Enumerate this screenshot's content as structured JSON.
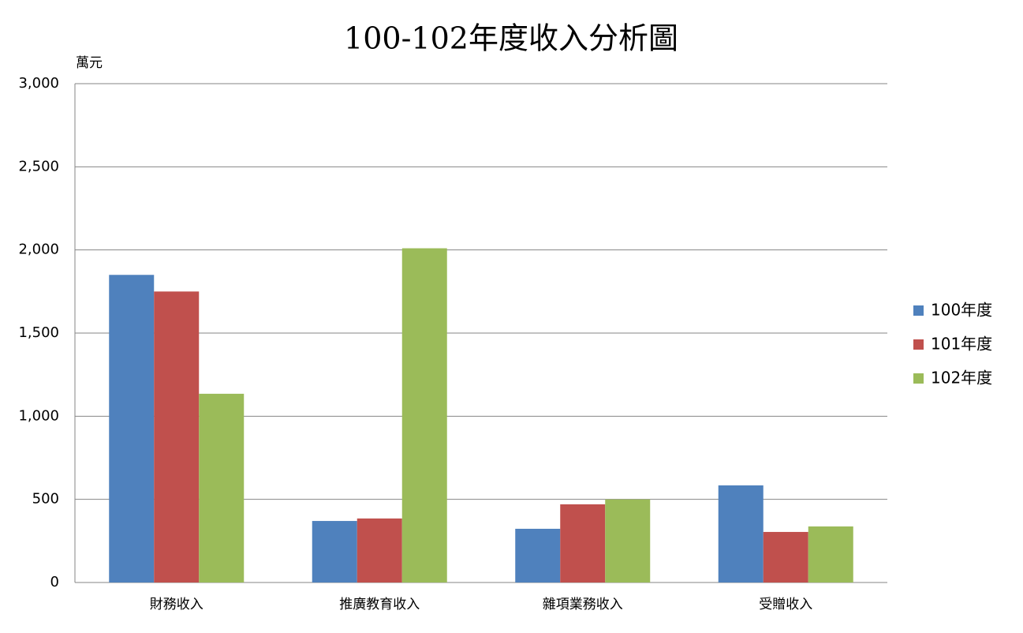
{
  "chart_data": {
    "type": "bar",
    "title": "100-102年度收入分析圖",
    "y_label": "萬元",
    "categories": [
      "財務收入",
      "推廣教育收入",
      "雜項業務收入",
      "受贈收入"
    ],
    "series": [
      {
        "name": "100年度",
        "color": "#4f81bd",
        "values": [
          1850,
          370,
          323,
          584
        ]
      },
      {
        "name": "101年度",
        "color": "#c0504d",
        "values": [
          1750,
          385,
          470,
          304
        ]
      },
      {
        "name": "102年度",
        "color": "#9bbb59",
        "values": [
          1135,
          2010,
          500,
          337
        ]
      }
    ],
    "ylim": [
      0,
      3000
    ],
    "yticks": [
      0,
      500,
      {
        "value": 1000,
        "label": "1,000"
      },
      {
        "value": 1500,
        "label": "1,500"
      },
      {
        "value": 2000,
        "label": "2,000"
      },
      {
        "value": 2500,
        "label": "2,500"
      },
      {
        "value": 3000,
        "label": "3,000"
      }
    ],
    "grid": true,
    "legend": "right"
  }
}
